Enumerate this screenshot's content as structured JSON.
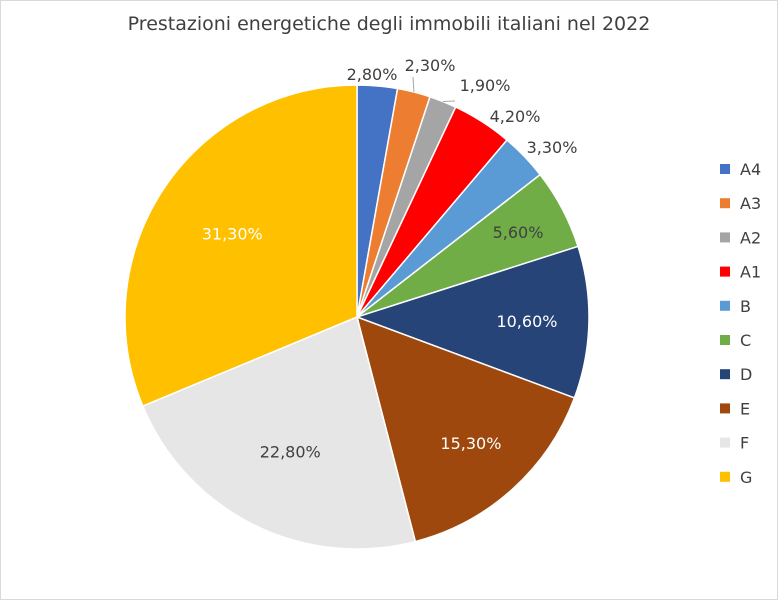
{
  "chart_data": {
    "type": "pie",
    "title": "Prestazioni energetiche degli immobili italiani nel 2022",
    "categories": [
      "A4",
      "A3",
      "A2",
      "A1",
      "B",
      "C",
      "D",
      "E",
      "F",
      "G"
    ],
    "values": [
      2.8,
      2.3,
      1.9,
      4.2,
      3.3,
      5.6,
      10.6,
      15.3,
      22.8,
      31.3
    ],
    "data_labels": [
      "2,80%",
      "2,30%",
      "1,90%",
      "4,20%",
      "3,30%",
      "5,60%",
      "10,60%",
      "15,30%",
      "22,80%",
      "31,30%"
    ],
    "colors": [
      "#4472C4",
      "#ED7D31",
      "#A5A5A5",
      "#FF0000",
      "#5B9BD5",
      "#70AD47",
      "#264478",
      "#9E480E",
      "#E7E6E6",
      "#FFC000"
    ],
    "label_colors": [
      "#404040",
      "#404040",
      "#404040",
      "#404040",
      "#404040",
      "#404040",
      "#ffffff",
      "#ffffff",
      "#404040",
      "#ffffff"
    ],
    "legend_position": "right",
    "start_angle": "top, clockwise"
  }
}
